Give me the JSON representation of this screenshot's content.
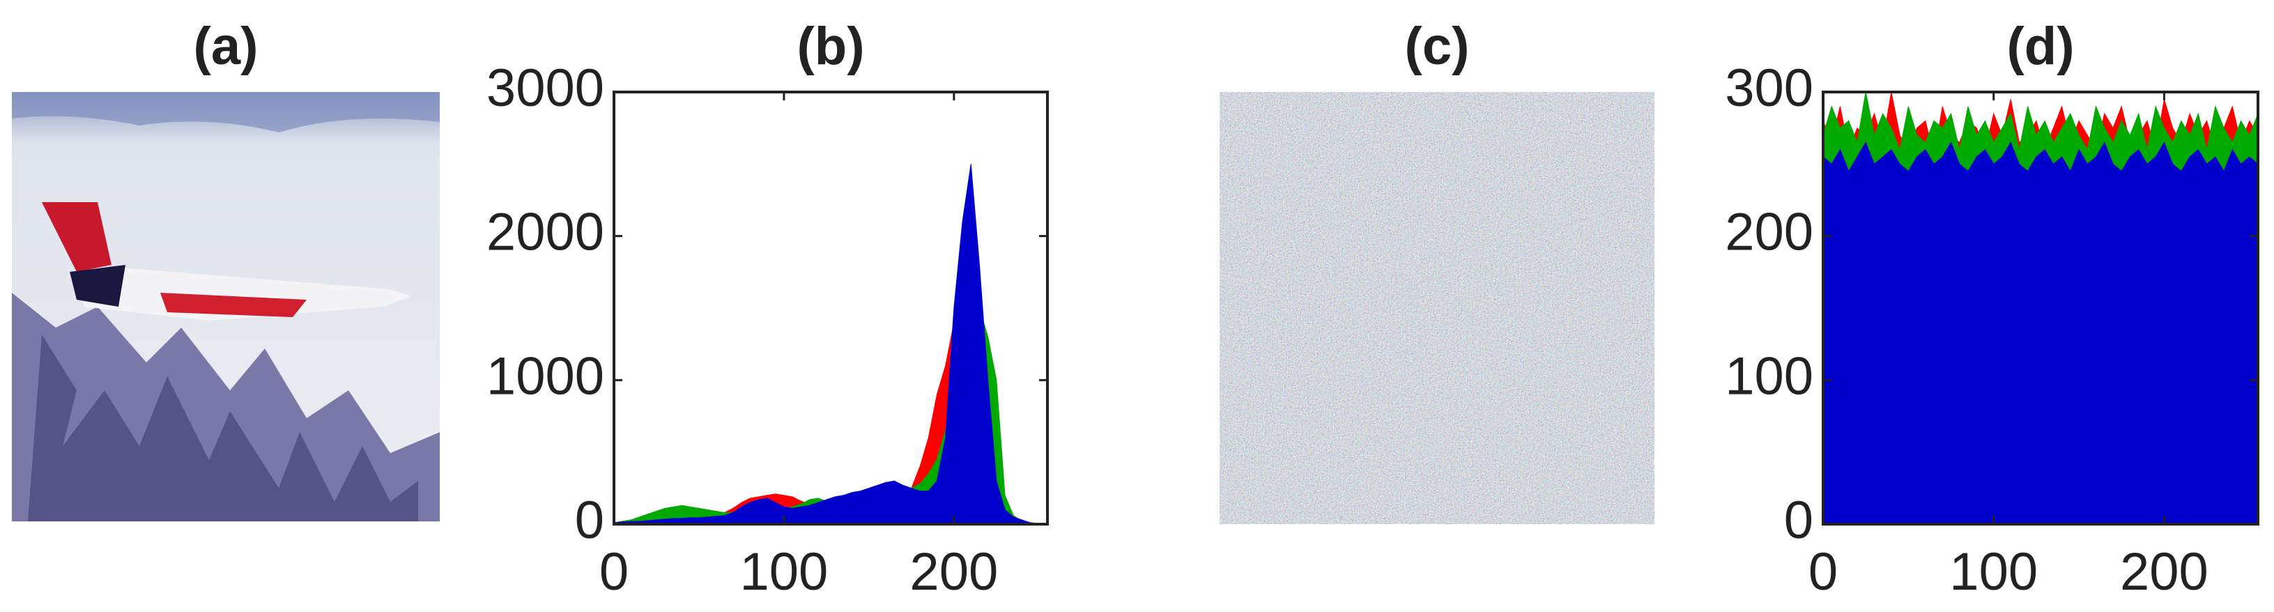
{
  "chart_data": [
    {
      "type": "photo",
      "title": "(a)"
    },
    {
      "type": "area",
      "title": "(b)",
      "x": [
        0,
        5,
        10,
        15,
        20,
        25,
        30,
        35,
        40,
        45,
        50,
        55,
        60,
        65,
        70,
        75,
        80,
        85,
        90,
        95,
        100,
        105,
        110,
        115,
        120,
        125,
        130,
        135,
        140,
        145,
        150,
        155,
        160,
        165,
        170,
        175,
        180,
        185,
        190,
        195,
        200,
        205,
        210,
        215,
        220,
        225,
        230,
        235,
        240,
        245,
        250,
        255
      ],
      "series": [
        {
          "color": "#ff0000",
          "values": [
            10,
            20,
            25,
            30,
            35,
            40,
            50,
            55,
            60,
            60,
            55,
            50,
            60,
            80,
            110,
            150,
            180,
            190,
            200,
            210,
            200,
            190,
            160,
            140,
            130,
            120,
            120,
            130,
            140,
            150,
            160,
            180,
            200,
            220,
            230,
            250,
            400,
            600,
            900,
            1100,
            1400,
            1500,
            1300,
            1200,
            900,
            300,
            80,
            30,
            15,
            5,
            0,
            0
          ]
        },
        {
          "color": "#00aa00",
          "values": [
            10,
            20,
            30,
            50,
            70,
            90,
            110,
            120,
            130,
            120,
            110,
            100,
            90,
            80,
            80,
            90,
            100,
            110,
            110,
            100,
            110,
            120,
            140,
            170,
            180,
            160,
            150,
            160,
            170,
            180,
            190,
            200,
            210,
            220,
            230,
            250,
            280,
            350,
            450,
            650,
            1000,
            1300,
            1400,
            1500,
            1300,
            1000,
            200,
            60,
            20,
            5,
            0,
            0
          ]
        },
        {
          "color": "#0000cc",
          "values": [
            10,
            15,
            20,
            20,
            25,
            30,
            35,
            40,
            40,
            45,
            45,
            50,
            55,
            60,
            80,
            120,
            150,
            170,
            180,
            150,
            120,
            110,
            120,
            130,
            150,
            170,
            190,
            200,
            220,
            230,
            250,
            270,
            290,
            300,
            270,
            250,
            230,
            230,
            300,
            600,
            1500,
            2100,
            2500,
            1800,
            1000,
            300,
            100,
            50,
            30,
            10,
            5,
            0
          ]
        }
      ],
      "xlim": [
        0,
        255
      ],
      "xticks": [
        0,
        100,
        200
      ],
      "ylim": [
        0,
        3000
      ],
      "yticks": [
        0,
        1000,
        2000,
        3000
      ]
    },
    {
      "type": "noise",
      "title": "(c)"
    },
    {
      "type": "area",
      "title": "(d)",
      "x": [
        0,
        5,
        10,
        15,
        20,
        25,
        30,
        35,
        40,
        45,
        50,
        55,
        60,
        65,
        70,
        75,
        80,
        85,
        90,
        95,
        100,
        105,
        110,
        115,
        120,
        125,
        130,
        135,
        140,
        145,
        150,
        155,
        160,
        165,
        170,
        175,
        180,
        185,
        190,
        195,
        200,
        205,
        210,
        215,
        220,
        225,
        230,
        235,
        240,
        245,
        250,
        255
      ],
      "series": [
        {
          "color": "#ff0000",
          "values": [
            280,
            265,
            290,
            260,
            275,
            270,
            285,
            265,
            300,
            270,
            260,
            275,
            280,
            255,
            290,
            270,
            265,
            280,
            275,
            260,
            285,
            270,
            295,
            265,
            270,
            280,
            260,
            275,
            290,
            265,
            280,
            270,
            260,
            285,
            275,
            290,
            265,
            270,
            280,
            260,
            295,
            275,
            265,
            285,
            270,
            280,
            260,
            275,
            290,
            265,
            280,
            270
          ]
        },
        {
          "color": "#00aa00",
          "values": [
            270,
            290,
            275,
            280,
            265,
            300,
            270,
            285,
            275,
            260,
            290,
            270,
            265,
            280,
            275,
            285,
            260,
            290,
            270,
            280,
            265,
            275,
            285,
            260,
            290,
            270,
            280,
            265,
            275,
            285,
            270,
            260,
            290,
            275,
            265,
            280,
            270,
            285,
            260,
            290,
            275,
            265,
            280,
            270,
            285,
            260,
            290,
            275,
            265,
            280,
            270,
            285
          ]
        },
        {
          "color": "#0000cc",
          "values": [
            255,
            250,
            260,
            245,
            255,
            265,
            250,
            255,
            260,
            250,
            245,
            255,
            260,
            250,
            255,
            265,
            250,
            245,
            255,
            260,
            250,
            255,
            265,
            250,
            245,
            255,
            260,
            250,
            255,
            245,
            260,
            250,
            255,
            265,
            250,
            245,
            255,
            260,
            250,
            255,
            265,
            250,
            245,
            255,
            260,
            250,
            255,
            245,
            260,
            250,
            255,
            250
          ]
        }
      ],
      "xlim": [
        0,
        255
      ],
      "xticks": [
        0,
        100,
        200
      ],
      "ylim": [
        0,
        300
      ],
      "yticks": [
        0,
        100,
        200,
        300
      ]
    }
  ]
}
